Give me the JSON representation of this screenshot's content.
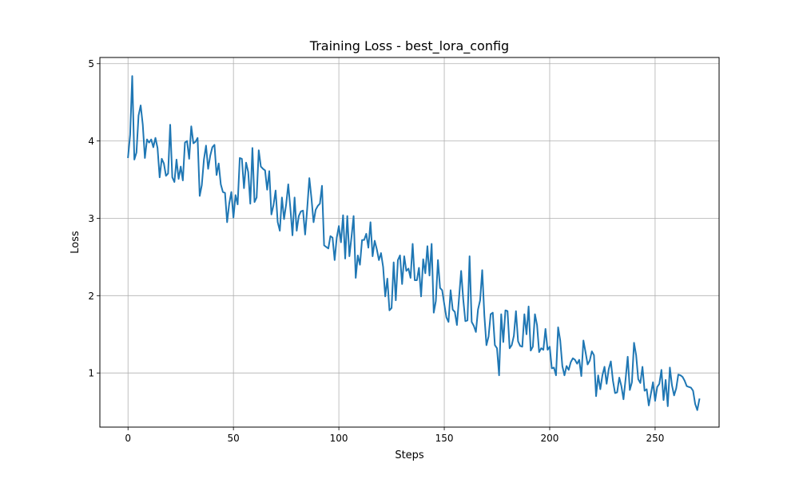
{
  "chart_data": {
    "type": "line",
    "title": "Training Loss - best_lora_config",
    "xlabel": "Steps",
    "ylabel": "Loss",
    "xlim": [
      -13.35,
      280.35
    ],
    "ylim": [
      0.3,
      5.08
    ],
    "xticks": [
      0,
      50,
      100,
      150,
      200,
      250
    ],
    "yticks": [
      1,
      2,
      3,
      4,
      5
    ],
    "grid": true,
    "series_color": "#1f77b4",
    "series": [
      {
        "values": [
          3.79,
          4.08,
          4.84,
          3.76,
          3.85,
          4.33,
          4.46,
          4.21,
          3.78,
          4.02,
          3.98,
          4.02,
          3.92,
          4.04,
          3.91,
          3.53,
          3.77,
          3.71,
          3.55,
          3.58,
          4.21,
          3.53,
          3.47,
          3.76,
          3.51,
          3.67,
          3.49,
          3.98,
          4.0,
          3.77,
          4.19,
          3.97,
          3.99,
          4.04,
          3.29,
          3.43,
          3.76,
          3.94,
          3.64,
          3.81,
          3.92,
          3.95,
          3.56,
          3.71,
          3.44,
          3.34,
          3.33,
          2.95,
          3.19,
          3.34,
          3.01,
          3.3,
          3.18,
          3.78,
          3.77,
          3.39,
          3.72,
          3.6,
          3.19,
          3.91,
          3.21,
          3.27,
          3.88,
          3.67,
          3.64,
          3.62,
          3.37,
          3.61,
          3.05,
          3.17,
          3.36,
          2.95,
          2.84,
          3.27,
          2.99,
          3.18,
          3.44,
          3.13,
          2.78,
          3.27,
          2.84,
          3.03,
          3.09,
          3.1,
          2.79,
          3.13,
          3.52,
          3.26,
          2.95,
          3.11,
          3.16,
          3.19,
          3.42,
          2.65,
          2.63,
          2.61,
          2.77,
          2.75,
          2.46,
          2.75,
          2.9,
          2.69,
          3.04,
          2.48,
          3.03,
          2.51,
          2.76,
          3.03,
          2.23,
          2.52,
          2.4,
          2.72,
          2.72,
          2.8,
          2.62,
          2.95,
          2.51,
          2.71,
          2.6,
          2.46,
          2.55,
          2.37,
          1.99,
          2.22,
          1.81,
          1.84,
          2.43,
          1.94,
          2.46,
          2.52,
          2.15,
          2.51,
          2.32,
          2.35,
          2.23,
          2.67,
          2.2,
          2.2,
          2.36,
          1.99,
          2.47,
          2.29,
          2.64,
          2.26,
          2.67,
          1.78,
          1.93,
          2.46,
          2.1,
          2.07,
          1.89,
          1.72,
          1.66,
          2.07,
          1.82,
          1.79,
          1.62,
          1.97,
          2.32,
          1.95,
          1.67,
          1.68,
          2.51,
          1.66,
          1.61,
          1.53,
          1.82,
          1.94,
          2.33,
          1.75,
          1.36,
          1.47,
          1.76,
          1.78,
          1.36,
          1.32,
          0.97,
          1.76,
          1.4,
          1.81,
          1.8,
          1.32,
          1.36,
          1.48,
          1.8,
          1.41,
          1.35,
          1.34,
          1.76,
          1.5,
          1.86,
          1.29,
          1.34,
          1.76,
          1.62,
          1.27,
          1.32,
          1.3,
          1.57,
          1.3,
          1.34,
          1.06,
          1.07,
          0.97,
          1.59,
          1.42,
          1.09,
          0.97,
          1.09,
          1.04,
          1.14,
          1.19,
          1.17,
          1.12,
          1.17,
          0.96,
          1.42,
          1.27,
          1.11,
          1.16,
          1.28,
          1.23,
          0.7,
          0.97,
          0.79,
          0.97,
          1.08,
          0.86,
          1.05,
          1.15,
          0.9,
          0.74,
          0.75,
          0.94,
          0.83,
          0.66,
          0.92,
          1.21,
          0.78,
          0.88,
          1.39,
          1.23,
          0.92,
          0.87,
          1.08,
          0.77,
          0.79,
          0.58,
          0.73,
          0.88,
          0.64,
          0.82,
          0.86,
          1.04,
          0.65,
          0.91,
          0.57,
          1.07,
          0.84,
          0.71,
          0.8,
          0.98,
          0.97,
          0.95,
          0.9,
          0.83,
          0.82,
          0.81,
          0.77,
          0.6,
          0.52,
          0.66
        ]
      }
    ]
  }
}
